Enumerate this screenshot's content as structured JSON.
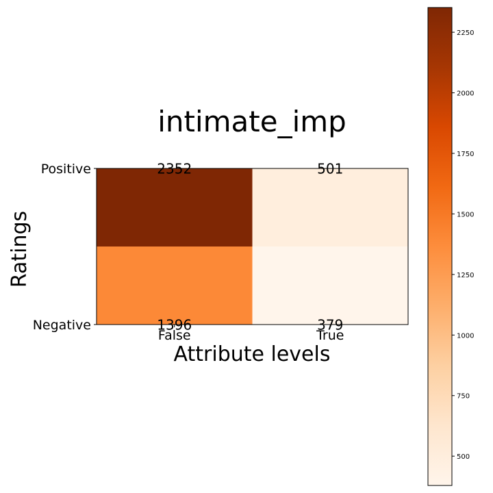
{
  "chart_data": {
    "type": "heatmap",
    "title": "intimate_imp",
    "xlabel": "Attribute levels",
    "ylabel": "Ratings",
    "x_categories": [
      "False",
      "True"
    ],
    "y_categories": [
      "Positive",
      "Negative"
    ],
    "values": [
      [
        2352,
        501
      ],
      [
        1396,
        379
      ]
    ],
    "colormap": "Oranges",
    "colorbar": {
      "min": 379,
      "max": 2352,
      "ticks": [
        500,
        750,
        1000,
        1250,
        1500,
        1750,
        2000,
        2250
      ]
    },
    "colors": {
      "low": "#fff5eb",
      "high": "#7f2704"
    }
  }
}
